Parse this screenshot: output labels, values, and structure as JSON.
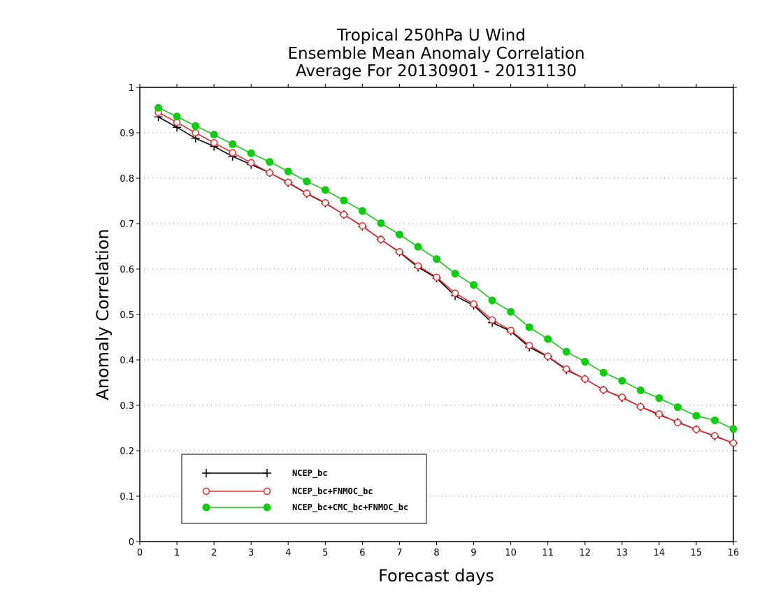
{
  "chart_data": {
    "type": "line",
    "title_lines": [
      "Tropical 250hPa U Wind",
      "Ensemble Mean Anomaly Correlation",
      "Average For 20130901 - 20131130"
    ],
    "xlabel": "Forecast days",
    "ylabel": "Anomaly Correlation",
    "xlim": [
      0,
      16
    ],
    "ylim": [
      0,
      1
    ],
    "xticks": [
      "0",
      "1",
      "2",
      "3",
      "4",
      "5",
      "6",
      "7",
      "8",
      "9",
      "10",
      "11",
      "12",
      "13",
      "14",
      "15",
      "16"
    ],
    "yticks": [
      "0",
      "0.1",
      "0.2",
      "0.3",
      "0.4",
      "0.5",
      "0.6",
      "0.7",
      "0.8",
      "0.9",
      "1"
    ],
    "grid": "horizontal dotted",
    "legend_position": "bottom-left",
    "x": [
      0.5,
      1,
      1.5,
      2,
      2.5,
      3,
      3.5,
      4,
      4.5,
      5,
      5.5,
      6,
      6.5,
      7,
      7.5,
      8,
      8.5,
      9,
      9.5,
      10,
      10.5,
      11,
      11.5,
      12,
      12.5,
      13,
      13.5,
      14,
      14.5,
      15,
      15.5,
      16
    ],
    "series": [
      {
        "name": "NCEP_bc",
        "color": "#000000",
        "marker": "plus",
        "values": [
          0.935,
          0.912,
          0.888,
          0.87,
          0.848,
          0.83,
          0.812,
          0.79,
          0.766,
          0.745,
          0.72,
          0.694,
          0.665,
          0.637,
          0.604,
          0.58,
          0.541,
          0.52,
          0.482,
          0.463,
          0.428,
          0.407,
          0.378,
          0.358,
          0.334,
          0.317,
          0.297,
          0.279,
          0.263,
          0.247,
          0.232,
          0.217
        ]
      },
      {
        "name": "NCEP_bc+FNMOC_bc",
        "color": "#e83030",
        "marker": "open-circle",
        "values": [
          0.945,
          0.923,
          0.9,
          0.878,
          0.856,
          0.834,
          0.812,
          0.791,
          0.767,
          0.746,
          0.72,
          0.695,
          0.665,
          0.638,
          0.607,
          0.582,
          0.547,
          0.523,
          0.488,
          0.465,
          0.432,
          0.408,
          0.38,
          0.358,
          0.334,
          0.318,
          0.297,
          0.281,
          0.262,
          0.247,
          0.233,
          0.217
        ]
      },
      {
        "name": "NCEP_bc+CMC_bc+FNMOC_bc",
        "color": "#11cc11",
        "marker": "filled-circle",
        "values": [
          0.955,
          0.936,
          0.915,
          0.896,
          0.875,
          0.855,
          0.836,
          0.815,
          0.793,
          0.774,
          0.751,
          0.728,
          0.701,
          0.676,
          0.649,
          0.622,
          0.59,
          0.565,
          0.531,
          0.506,
          0.472,
          0.446,
          0.418,
          0.396,
          0.372,
          0.354,
          0.333,
          0.316,
          0.296,
          0.277,
          0.267,
          0.248
        ]
      }
    ]
  }
}
